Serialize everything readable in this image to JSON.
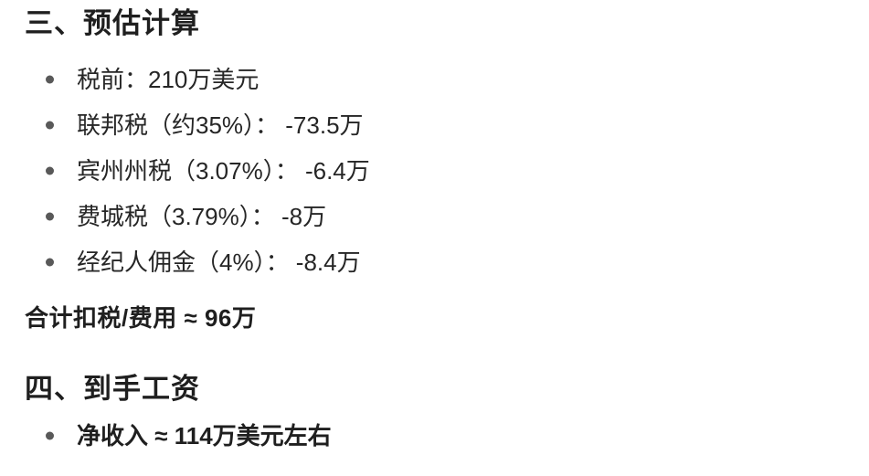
{
  "page": {
    "background": "#ffffff",
    "text_color": "#262626",
    "heading_color": "#1f1f1f",
    "bullet_dot_color": "#595959"
  },
  "sections": [
    {
      "heading": "三、预估计算",
      "bullets": [
        "税前：210万美元",
        "联邦税（约35%）： -73.5万",
        "宾州州税（3.07%）： -6.4万",
        "费城税（3.79%）： -8万",
        "经纪人佣金（4%）： -8.4万"
      ],
      "summary": "合计扣税/费用 ≈ 96万"
    },
    {
      "heading": "四、到手工资",
      "bullets": [
        "净收入 ≈ 114万美元左右"
      ]
    }
  ]
}
